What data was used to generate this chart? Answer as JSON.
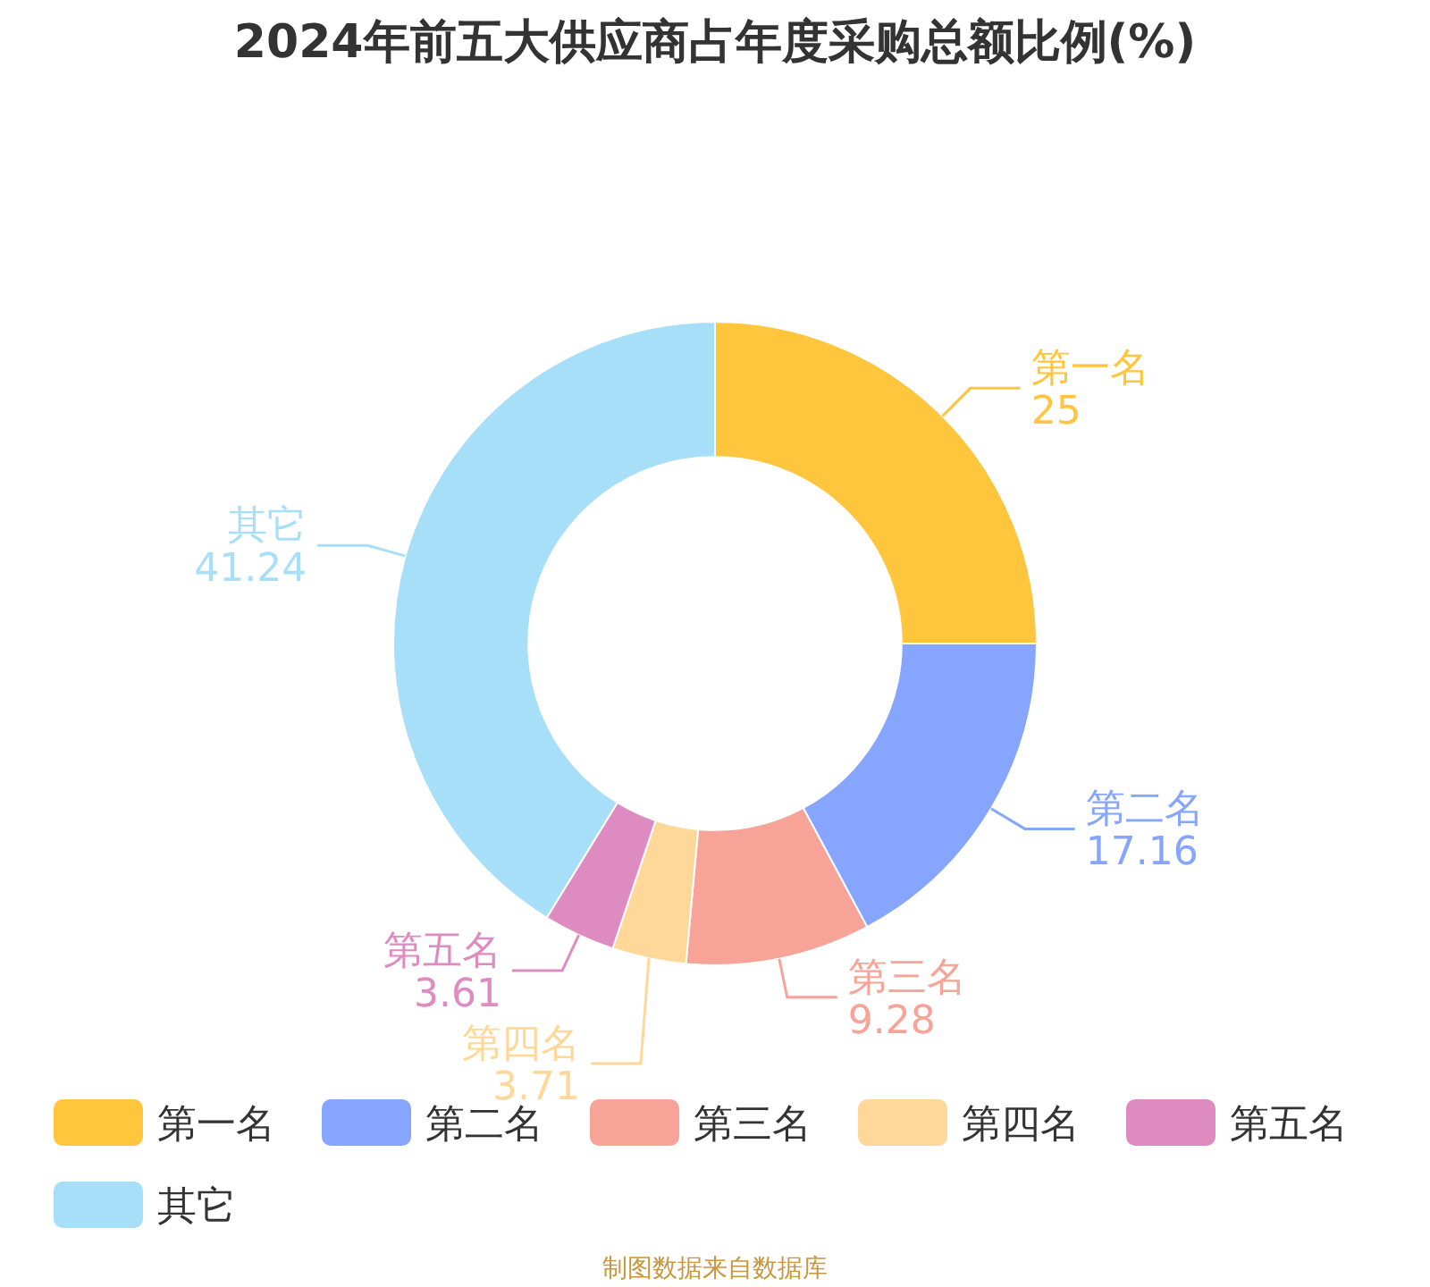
{
  "chart_data": {
    "type": "donut",
    "title": "2024年前五大供应商占年度采购总额比例(%)",
    "categories": [
      "第一名",
      "第二名",
      "第三名",
      "第四名",
      "第五名",
      "其它"
    ],
    "values": [
      25,
      17.16,
      9.28,
      3.71,
      3.61,
      41.24
    ],
    "colors": [
      "#ffc53d",
      "#85a5ff",
      "#f8a398",
      "#ffd899",
      "#de8bc1",
      "#a8dff8"
    ],
    "data_labels": true,
    "legend": "bottom",
    "annotations": [
      "制图数据来自数据库"
    ]
  }
}
